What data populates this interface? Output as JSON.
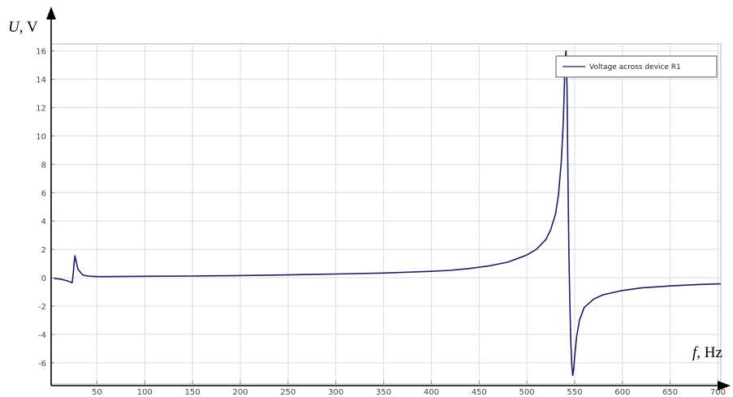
{
  "chart_data": {
    "type": "line",
    "title": "",
    "xlabel_var": "f",
    "xlabel_unit": ", Hz",
    "ylabel_var": "U",
    "ylabel_unit": ", V",
    "xlim": [
      2,
      703
    ],
    "ylim": [
      -7.5,
      16.5
    ],
    "x_ticks": [
      50,
      100,
      150,
      200,
      250,
      300,
      350,
      400,
      450,
      500,
      550,
      600,
      650,
      700
    ],
    "x_tick_labels": [
      "50",
      "100",
      "150",
      "200",
      "250",
      "300",
      "350",
      "400",
      "450",
      "500",
      "550",
      "600",
      "650",
      "700"
    ],
    "y_ticks": [
      -6,
      -4,
      -2,
      0,
      2,
      4,
      6,
      8,
      10,
      12,
      14,
      16
    ],
    "y_tick_labels": [
      "-6",
      "-4",
      "-2",
      "0",
      "2",
      "4",
      "6",
      "8",
      "10",
      "12",
      "14",
      "16"
    ],
    "grid": true,
    "legend_position": "top-right",
    "series": [
      {
        "name": "Voltage across device R1",
        "color": "#1a1a6e",
        "x": [
          5,
          12,
          18,
          22,
          24,
          25,
          26,
          27,
          28,
          30,
          35,
          40,
          50,
          100,
          150,
          200,
          250,
          300,
          350,
          400,
          420,
          440,
          460,
          480,
          500,
          510,
          520,
          525,
          530,
          533,
          536,
          538,
          539,
          540,
          541,
          542,
          543,
          544,
          545,
          546,
          547,
          548,
          549,
          550,
          552,
          555,
          560,
          570,
          580,
          600,
          620,
          650,
          680,
          703
        ],
        "y": [
          -0.05,
          -0.1,
          -0.2,
          -0.3,
          -0.35,
          0.2,
          1.0,
          1.55,
          1.2,
          0.6,
          0.2,
          0.12,
          0.08,
          0.1,
          0.12,
          0.15,
          0.2,
          0.26,
          0.33,
          0.45,
          0.52,
          0.65,
          0.83,
          1.1,
          1.6,
          2.0,
          2.7,
          3.4,
          4.5,
          5.8,
          8.2,
          10.8,
          13.0,
          15.5,
          16.0,
          13.5,
          7.0,
          1.5,
          -2.0,
          -4.5,
          -6.2,
          -6.9,
          -6.4,
          -5.6,
          -4.2,
          -3.0,
          -2.1,
          -1.5,
          -1.2,
          -0.9,
          -0.72,
          -0.58,
          -0.48,
          -0.43
        ]
      }
    ]
  }
}
